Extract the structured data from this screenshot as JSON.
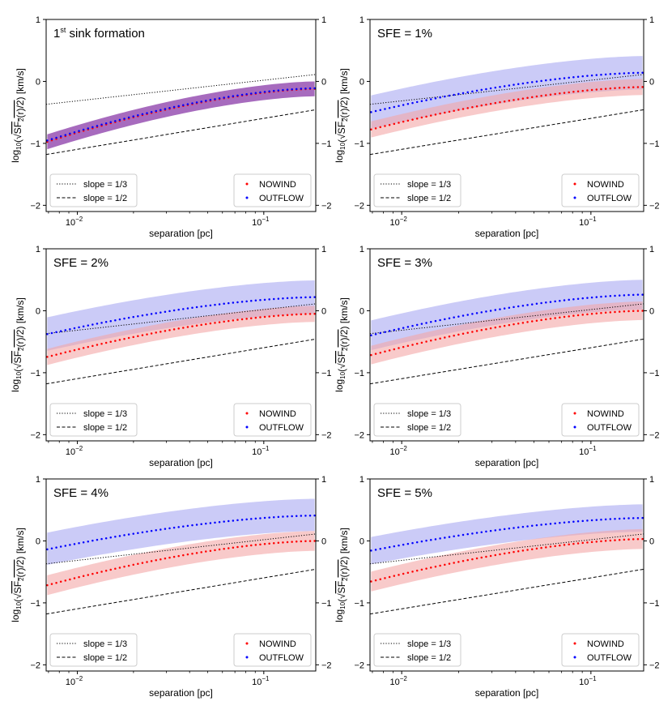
{
  "figure": {
    "ylabel_text": "log10(√(SF2(r)/2)) [km/s]",
    "xlabel": "separation [pc]"
  },
  "colors": {
    "nowind": "#ff0000",
    "outflow": "#0000ff",
    "nowind_band": "#f4a6a6",
    "outflow_band": "#a8a8f2",
    "overlap_band": "#8a3aa8"
  },
  "chart_data": [
    {
      "id": "1st-sink",
      "type": "scatter",
      "title": "1st sink formation",
      "title_main": "1",
      "title_sup": "st",
      "title_rest": " sink formation",
      "xlabel": "separation [pc]",
      "xscale": "log",
      "xlim": [
        0.0068,
        0.19
      ],
      "ylim": [
        -2.1,
        1.0
      ],
      "xticks": [
        {
          "value": 0.01,
          "base": "10",
          "exp": "−2"
        },
        {
          "value": 0.1,
          "base": "10",
          "exp": "−1"
        }
      ],
      "yticks": [
        -2,
        -1,
        0,
        1
      ],
      "ytick_labels": [
        "−2",
        "−1",
        "0",
        "1"
      ],
      "reference_lines": [
        {
          "name": "slope = 1/3",
          "style": "dotted",
          "y_at_xmin": -0.37,
          "slope": 0.3333
        },
        {
          "name": "slope = 1/2",
          "style": "dashed",
          "y_at_xmin": -1.18,
          "slope": 0.5
        }
      ],
      "series": [
        {
          "name": "NOWIND",
          "color": "#ff0000",
          "y_start": -0.98,
          "y_end": -0.12,
          "band_lo": 0.12,
          "band_hi": 0.12
        },
        {
          "name": "OUTFLOW",
          "color": "#0000ff",
          "y_start": -0.96,
          "y_end": -0.11,
          "band_lo": 0.13,
          "band_hi": 0.13
        }
      ],
      "single_band": "overlap",
      "legend_lines": [
        "slope = 1/3",
        "slope = 1/2"
      ],
      "legend_points": [
        "NOWIND",
        "OUTFLOW"
      ]
    },
    {
      "id": "sfe-1",
      "type": "scatter",
      "title": "SFE = 1%",
      "xlabel": "separation [pc]",
      "xscale": "log",
      "xlim": [
        0.0068,
        0.19
      ],
      "ylim": [
        -2.1,
        1.0
      ],
      "xticks": [
        {
          "value": 0.01,
          "base": "10",
          "exp": "−2"
        },
        {
          "value": 0.1,
          "base": "10",
          "exp": "−1"
        }
      ],
      "yticks": [
        -2,
        -1,
        0,
        1
      ],
      "ytick_labels": [
        "−2",
        "−1",
        "0",
        "1"
      ],
      "reference_lines": [
        {
          "name": "slope = 1/3",
          "style": "dotted",
          "y_at_xmin": -0.37,
          "slope": 0.3333
        },
        {
          "name": "slope = 1/2",
          "style": "dashed",
          "y_at_xmin": -1.18,
          "slope": 0.5
        }
      ],
      "series": [
        {
          "name": "NOWIND",
          "color": "#ff0000",
          "y_start": -0.78,
          "y_end": -0.09,
          "band_lo": 0.13,
          "band_hi": 0.13
        },
        {
          "name": "OUTFLOW",
          "color": "#0000ff",
          "y_start": -0.5,
          "y_end": 0.14,
          "band_lo": 0.27,
          "band_hi": 0.27
        }
      ],
      "legend_lines": [
        "slope = 1/3",
        "slope = 1/2"
      ],
      "legend_points": [
        "NOWIND",
        "OUTFLOW"
      ]
    },
    {
      "id": "sfe-2",
      "type": "scatter",
      "title": "SFE = 2%",
      "xlabel": "separation [pc]",
      "xscale": "log",
      "xlim": [
        0.0068,
        0.19
      ],
      "ylim": [
        -2.1,
        1.0
      ],
      "xticks": [
        {
          "value": 0.01,
          "base": "10",
          "exp": "−2"
        },
        {
          "value": 0.1,
          "base": "10",
          "exp": "−1"
        }
      ],
      "yticks": [
        -2,
        -1,
        0,
        1
      ],
      "ytick_labels": [
        "−2",
        "−1",
        "0",
        "1"
      ],
      "reference_lines": [
        {
          "name": "slope = 1/3",
          "style": "dotted",
          "y_at_xmin": -0.37,
          "slope": 0.3333
        },
        {
          "name": "slope = 1/2",
          "style": "dashed",
          "y_at_xmin": -1.18,
          "slope": 0.5
        }
      ],
      "series": [
        {
          "name": "NOWIND",
          "color": "#ff0000",
          "y_start": -0.75,
          "y_end": -0.05,
          "band_lo": 0.13,
          "band_hi": 0.13
        },
        {
          "name": "OUTFLOW",
          "color": "#0000ff",
          "y_start": -0.38,
          "y_end": 0.22,
          "band_lo": 0.27,
          "band_hi": 0.27
        }
      ],
      "legend_lines": [
        "slope = 1/3",
        "slope = 1/2"
      ],
      "legend_points": [
        "NOWIND",
        "OUTFLOW"
      ]
    },
    {
      "id": "sfe-3",
      "type": "scatter",
      "title": "SFE = 3%",
      "xlabel": "separation [pc]",
      "xscale": "log",
      "xlim": [
        0.0068,
        0.19
      ],
      "ylim": [
        -2.1,
        1.0
      ],
      "xticks": [
        {
          "value": 0.01,
          "base": "10",
          "exp": "−2"
        },
        {
          "value": 0.1,
          "base": "10",
          "exp": "−1"
        }
      ],
      "yticks": [
        -2,
        -1,
        0,
        1
      ],
      "ytick_labels": [
        "−2",
        "−1",
        "0",
        "1"
      ],
      "reference_lines": [
        {
          "name": "slope = 1/3",
          "style": "dotted",
          "y_at_xmin": -0.37,
          "slope": 0.3333
        },
        {
          "name": "slope = 1/2",
          "style": "dashed",
          "y_at_xmin": -1.18,
          "slope": 0.5
        }
      ],
      "series": [
        {
          "name": "NOWIND",
          "color": "#ff0000",
          "y_start": -0.72,
          "y_end": 0.0,
          "band_lo": 0.15,
          "band_hi": 0.15
        },
        {
          "name": "OUTFLOW",
          "color": "#0000ff",
          "y_start": -0.4,
          "y_end": 0.26,
          "band_lo": 0.24,
          "band_hi": 0.24
        }
      ],
      "legend_lines": [
        "slope = 1/3",
        "slope = 1/2"
      ],
      "legend_points": [
        "NOWIND",
        "OUTFLOW"
      ]
    },
    {
      "id": "sfe-4",
      "type": "scatter",
      "title": "SFE = 4%",
      "xlabel": "separation [pc]",
      "xscale": "log",
      "xlim": [
        0.0068,
        0.19
      ],
      "ylim": [
        -2.1,
        1.0
      ],
      "xticks": [
        {
          "value": 0.01,
          "base": "10",
          "exp": "−2"
        },
        {
          "value": 0.1,
          "base": "10",
          "exp": "−1"
        }
      ],
      "yticks": [
        -2,
        -1,
        0,
        1
      ],
      "ytick_labels": [
        "−2",
        "−1",
        "0",
        "1"
      ],
      "reference_lines": [
        {
          "name": "slope = 1/3",
          "style": "dotted",
          "y_at_xmin": -0.37,
          "slope": 0.3333
        },
        {
          "name": "slope = 1/2",
          "style": "dashed",
          "y_at_xmin": -1.18,
          "slope": 0.5
        }
      ],
      "series": [
        {
          "name": "NOWIND",
          "color": "#ff0000",
          "y_start": -0.72,
          "y_end": 0.0,
          "band_lo": 0.16,
          "band_hi": 0.16
        },
        {
          "name": "OUTFLOW",
          "color": "#0000ff",
          "y_start": -0.14,
          "y_end": 0.41,
          "band_lo": 0.25,
          "band_hi": 0.27
        }
      ],
      "legend_lines": [
        "slope = 1/3",
        "slope = 1/2"
      ],
      "legend_points": [
        "NOWIND",
        "OUTFLOW"
      ]
    },
    {
      "id": "sfe-5",
      "type": "scatter",
      "title": "SFE = 5%",
      "xlabel": "separation [pc]",
      "xscale": "log",
      "xlim": [
        0.0068,
        0.19
      ],
      "ylim": [
        -2.1,
        1.0
      ],
      "xticks": [
        {
          "value": 0.01,
          "base": "10",
          "exp": "−2"
        },
        {
          "value": 0.1,
          "base": "10",
          "exp": "−1"
        }
      ],
      "yticks": [
        -2,
        -1,
        0,
        1
      ],
      "ytick_labels": [
        "−2",
        "−1",
        "0",
        "1"
      ],
      "reference_lines": [
        {
          "name": "slope = 1/3",
          "style": "dotted",
          "y_at_xmin": -0.37,
          "slope": 0.3333
        },
        {
          "name": "slope = 1/2",
          "style": "dashed",
          "y_at_xmin": -1.18,
          "slope": 0.5
        }
      ],
      "series": [
        {
          "name": "NOWIND",
          "color": "#ff0000",
          "y_start": -0.66,
          "y_end": 0.03,
          "band_lo": 0.16,
          "band_hi": 0.16
        },
        {
          "name": "OUTFLOW",
          "color": "#0000ff",
          "y_start": -0.16,
          "y_end": 0.37,
          "band_lo": 0.22,
          "band_hi": 0.22
        }
      ],
      "legend_lines": [
        "slope = 1/3",
        "slope = 1/2"
      ],
      "legend_points": [
        "NOWIND",
        "OUTFLOW"
      ]
    }
  ]
}
